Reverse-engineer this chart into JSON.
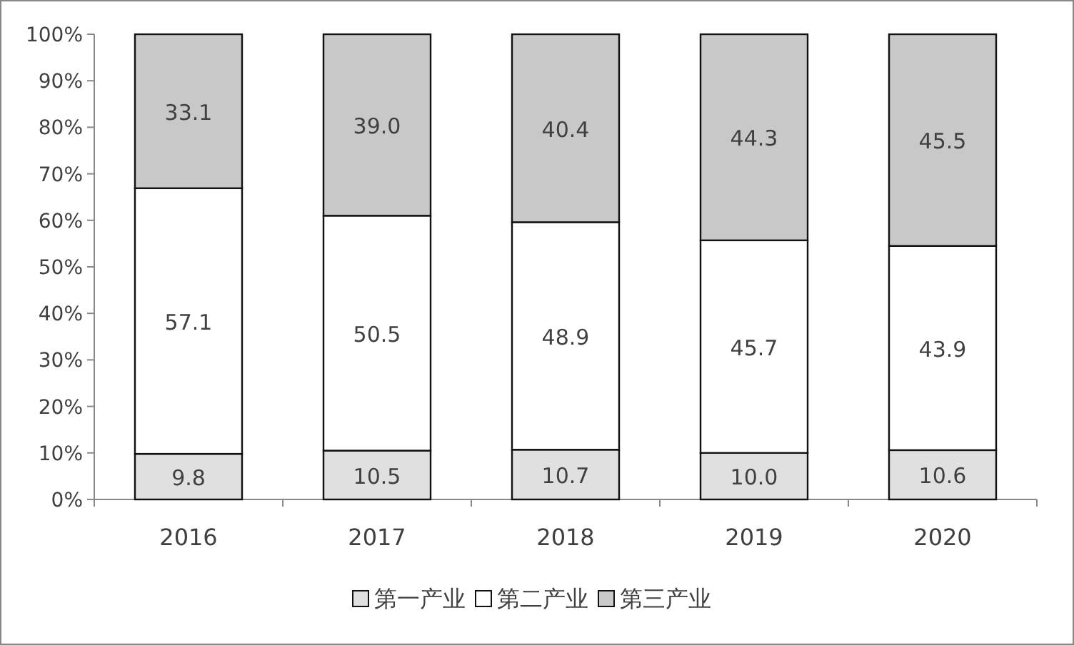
{
  "chart_data": {
    "type": "bar",
    "stacked": true,
    "categories": [
      "2016",
      "2017",
      "2018",
      "2019",
      "2020"
    ],
    "series": [
      {
        "name": "第一产业",
        "color": "#e0e0e0",
        "values": [
          9.8,
          10.5,
          10.7,
          10.0,
          10.6
        ],
        "value_labels": [
          "9.8",
          "10.5",
          "10.7",
          "10.0",
          "10.6"
        ]
      },
      {
        "name": "第二产业",
        "color": "#ffffff",
        "values": [
          57.1,
          50.5,
          48.9,
          45.7,
          43.9
        ],
        "value_labels": [
          "57.1",
          "50.5",
          "48.9",
          "45.7",
          "43.9"
        ]
      },
      {
        "name": "第三产业",
        "color": "#c8c8c8",
        "values": [
          33.1,
          39.0,
          40.4,
          44.3,
          45.5
        ],
        "value_labels": [
          "33.1",
          "39.0",
          "40.4",
          "44.3",
          "45.5"
        ]
      }
    ],
    "ylim": [
      0,
      100
    ],
    "yticks": [
      {
        "value": 0,
        "label": "0%"
      },
      {
        "value": 10,
        "label": "10%"
      },
      {
        "value": 20,
        "label": "20%"
      },
      {
        "value": 30,
        "label": "30%"
      },
      {
        "value": 40,
        "label": "40%"
      },
      {
        "value": 50,
        "label": "50%"
      },
      {
        "value": 60,
        "label": "60%"
      },
      {
        "value": 70,
        "label": "70%"
      },
      {
        "value": 80,
        "label": "80%"
      },
      {
        "value": 90,
        "label": "90%"
      },
      {
        "value": 100,
        "label": "100%"
      }
    ],
    "legend": "bottom"
  }
}
